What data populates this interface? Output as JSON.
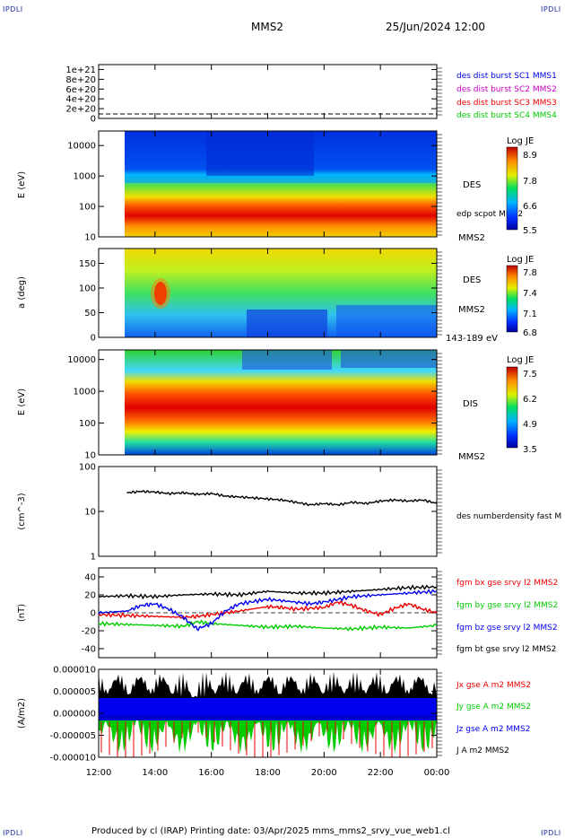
{
  "header": {
    "spacecraft": "MMS2",
    "datetime": "25/Jun/2024 12:00"
  },
  "corners": {
    "tl": "IPDLI",
    "tr": "IPDLI",
    "bl": "IPDLI",
    "br": "IPDLI"
  },
  "footer": {
    "text": "Produced by cl (IRAP)   Printing date: 03/Apr/2025   mms_mms2_srvy_vue_web1.cl"
  },
  "colors": {
    "blue": "#0000ee",
    "magenta": "#cc00cc",
    "red": "#ee0000",
    "green": "#00cc00",
    "black": "#000000"
  },
  "chart_data": [
    {
      "id": "p1",
      "type": "line",
      "yticks": [
        "1e+21",
        "8e+20",
        "6e+20",
        "4e+20",
        "2e+20",
        "0"
      ],
      "ytick_values": [
        1e+21,
        8e+20,
        6e+20,
        4e+20,
        2e+20,
        0
      ],
      "ylim": [
        0,
        1.1e+21
      ],
      "legend": [
        {
          "text": "des dist burst SC1 MMS1",
          "color": "#0000ee"
        },
        {
          "text": "des dist burst SC2 MMS2",
          "color": "#cc00cc"
        },
        {
          "text": "des dist burst SC3 MMS3",
          "color": "#ee0000"
        },
        {
          "text": "des dist burst SC4 MMS4",
          "color": "#00cc00"
        }
      ]
    },
    {
      "id": "p2",
      "type": "heatmap",
      "ylabel": "E (eV)",
      "yticks": [
        "10000",
        "1000",
        "100",
        "10"
      ],
      "ylog": true,
      "ylim": [
        10,
        30000
      ],
      "colorbar": {
        "title": "Log JE",
        "ticks": [
          "8.9",
          "7.8",
          "6.6",
          "5.5"
        ]
      },
      "labels": {
        "species": "DES",
        "overlay": "edp scpot MMS2",
        "sc": "MMS2"
      }
    },
    {
      "id": "p3",
      "type": "heatmap",
      "ylabel": "a (deg)",
      "yticks": [
        "150",
        "100",
        "50",
        "0"
      ],
      "ylim": [
        0,
        180
      ],
      "colorbar": {
        "title": "Log JE",
        "ticks": [
          "7.8",
          "7.4",
          "7.1",
          "6.8"
        ]
      },
      "labels": {
        "species": "DES",
        "sc": "MMS2",
        "range": "143-189 eV"
      }
    },
    {
      "id": "p4",
      "type": "heatmap",
      "ylabel": "E (eV)",
      "yticks": [
        "10000",
        "1000",
        "100",
        "10"
      ],
      "ylog": true,
      "ylim": [
        10,
        20000
      ],
      "colorbar": {
        "title": "Log JE",
        "ticks": [
          "7.5",
          "6.2",
          "4.9",
          "3.5"
        ]
      },
      "labels": {
        "species": "DIS",
        "sc": "MMS2"
      }
    },
    {
      "id": "p5",
      "type": "line",
      "ylabel": "(cm^-3)",
      "yticks": [
        "100",
        "10",
        "1"
      ],
      "ylog": true,
      "ylim": [
        1,
        100
      ],
      "series": [
        {
          "name": "des numberdensity fast M",
          "color": "#000000",
          "x": [
            13.0,
            13.5,
            14.0,
            14.5,
            15.0,
            15.5,
            16.0,
            16.5,
            17.0,
            17.5,
            18.0,
            18.5,
            19.0,
            19.5,
            20.0,
            20.5,
            21.0,
            21.5,
            22.0,
            22.5,
            23.0,
            23.5,
            24.0
          ],
          "y": [
            26,
            28,
            27,
            25,
            26,
            24,
            25,
            22,
            21,
            20,
            19,
            18,
            16,
            14,
            15,
            14,
            16,
            15,
            17,
            18,
            17,
            18,
            15
          ]
        }
      ]
    },
    {
      "id": "p6",
      "type": "line",
      "ylabel": "(nT)",
      "yticks": [
        "40",
        "20",
        "0",
        "-20",
        "-40"
      ],
      "ylim": [
        -50,
        50
      ],
      "series": [
        {
          "name": "fgm bx gse srvy l2 MMS2",
          "color": "#ee0000",
          "x": [
            12.0,
            13.0,
            14.0,
            15.0,
            15.5,
            16.0,
            17.0,
            18.0,
            18.5,
            19.0,
            20.0,
            20.5,
            21.0,
            21.5,
            22.0,
            22.5,
            23.0,
            23.5,
            24.0
          ],
          "y": [
            -2,
            -3,
            -4,
            -5,
            -4,
            -2,
            2,
            7,
            6,
            4,
            6,
            12,
            8,
            2,
            -2,
            5,
            10,
            4,
            0
          ]
        },
        {
          "name": "fgm by gse srvy l2 MMS2",
          "color": "#00cc00",
          "x": [
            12.0,
            13.0,
            14.0,
            15.0,
            15.5,
            16.0,
            17.0,
            18.0,
            19.0,
            20.0,
            21.0,
            22.0,
            23.0,
            24.0
          ],
          "y": [
            -12,
            -13,
            -14,
            -15,
            -10,
            -12,
            -14,
            -16,
            -15,
            -17,
            -18,
            -16,
            -17,
            -14
          ]
        },
        {
          "name": "fgm bz gse srvy l2 MMS2",
          "color": "#0000ee",
          "x": [
            12.0,
            13.0,
            13.5,
            14.0,
            14.5,
            15.0,
            15.5,
            16.0,
            16.5,
            17.0,
            18.0,
            19.0,
            19.5,
            20.0,
            21.0,
            22.0,
            23.0,
            24.0
          ],
          "y": [
            0,
            2,
            8,
            10,
            4,
            -5,
            -18,
            -12,
            2,
            10,
            15,
            12,
            10,
            12,
            18,
            20,
            22,
            24
          ]
        },
        {
          "name": "fgm bt gse srvy l2 MMS2",
          "color": "#000000",
          "x": [
            12.0,
            13.0,
            14.0,
            15.0,
            16.0,
            17.0,
            18.0,
            19.0,
            20.0,
            21.0,
            22.0,
            23.0,
            24.0
          ],
          "y": [
            18,
            19,
            18,
            20,
            21,
            20,
            24,
            22,
            22,
            24,
            26,
            28,
            29
          ]
        }
      ]
    },
    {
      "id": "p7",
      "type": "line",
      "ylabel": "(A/m2)",
      "yticks": [
        "0.000010",
        "0.000005",
        "0.000000",
        "-0.000005",
        "-0.000010"
      ],
      "ylim": [
        -1e-05,
        1e-05
      ],
      "legend": [
        {
          "text": "Jx gse A m2 MMS2",
          "color": "#ee0000"
        },
        {
          "text": "Jy gse A m2 MMS2",
          "color": "#00cc00"
        },
        {
          "text": "Jz gse A m2 MMS2",
          "color": "#0000ee"
        },
        {
          "text": "J A m2 MMS2",
          "color": "#000000"
        }
      ]
    }
  ],
  "xaxis": {
    "ticks": [
      "12:00",
      "14:00",
      "16:00",
      "18:00",
      "20:00",
      "22:00",
      "00:00"
    ],
    "hours": [
      12,
      14,
      16,
      18,
      20,
      22,
      24
    ],
    "xlim": [
      12,
      24
    ]
  }
}
